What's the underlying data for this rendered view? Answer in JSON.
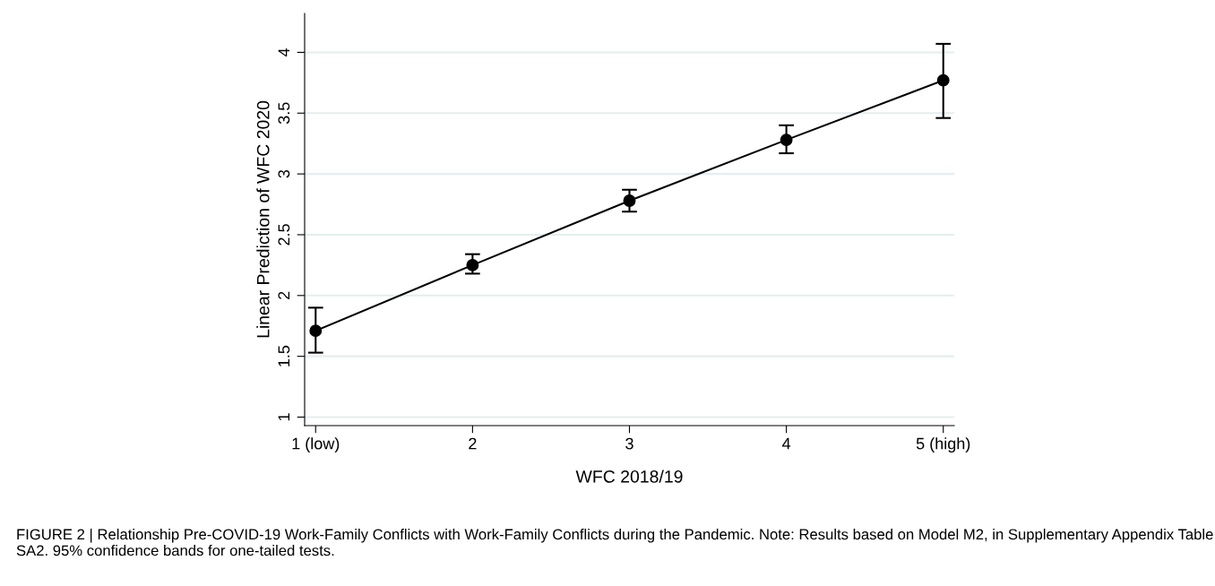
{
  "chart_data": {
    "type": "line",
    "xlabel": "WFC 2018/19",
    "ylabel": "Linear Prediction of WFC 2020",
    "x": [
      1,
      2,
      3,
      4,
      5
    ],
    "series": [
      {
        "color": "#000000",
        "values": [
          1.71,
          2.25,
          2.78,
          3.28,
          3.77
        ],
        "errors": [
          [
            1.53,
            1.9
          ],
          [
            2.18,
            2.34
          ],
          [
            2.69,
            2.87
          ],
          [
            3.17,
            3.4
          ],
          [
            3.46,
            4.07
          ]
        ]
      }
    ],
    "xlim": [
      0.93,
      5.07
    ],
    "xticks": [
      {
        "value": 1,
        "label": "1 (low)"
      },
      2,
      3,
      4,
      {
        "value": 5,
        "label": "5 (high)"
      }
    ],
    "ylim": [
      0.93,
      4.32
    ],
    "yticks": [
      1,
      1.5,
      2,
      2.5,
      3,
      3.5,
      4
    ],
    "grid": "y",
    "marker": "circle",
    "line_style": "solid",
    "annotations": [
      "FIGURE 2 | Relationship Pre-COVID-19 Work-Family Conflicts with Work-Family Conflicts during the Pandemic. Note: Results based on Model M2, in Supplementary Appendix Table SA2. 95% confidence bands for one-tailed tests."
    ]
  }
}
